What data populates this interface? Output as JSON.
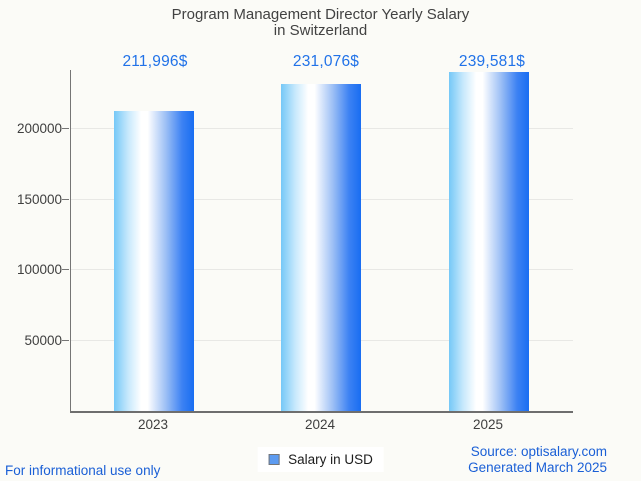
{
  "title": {
    "line1": "Program Management Director Yearly Salary",
    "line2": "in Switzerland"
  },
  "chart_data": {
    "type": "bar",
    "title": "Program Management Director Yearly Salary in Switzerland",
    "categories": [
      "2023",
      "2024",
      "2025"
    ],
    "series": [
      {
        "name": "Salary in USD",
        "values": [
          211996,
          231076,
          239581
        ]
      }
    ],
    "value_labels": [
      "211,996$",
      "231,076$",
      "239,581$"
    ],
    "yticks": [
      50000,
      100000,
      150000,
      200000
    ],
    "ytick_labels": [
      "50000",
      "100000",
      "150000",
      "200000"
    ],
    "ylim": [
      0,
      241200
    ],
    "xlabel": "",
    "ylabel": "",
    "grid": true,
    "legend_position": "bottom"
  },
  "legend": {
    "label": "Salary in USD",
    "marker_color": "#5d9bf0"
  },
  "footer": {
    "disclaimer": "For informational use only",
    "source": "Source: optisalary.com",
    "generated": "Generated March 2025"
  },
  "colors": {
    "background": "#fbfbf7",
    "title_text": "#424242",
    "value_label_text": "#2172e8",
    "link_text": "#1a5fd6",
    "axis": "#757575",
    "gridline": "#e8e8e5",
    "tick_text": "#3f3f3f",
    "bar_gradient_left": "#75c8f7",
    "bar_gradient_mid": "#ffffff",
    "bar_gradient_right": "#186df2"
  }
}
